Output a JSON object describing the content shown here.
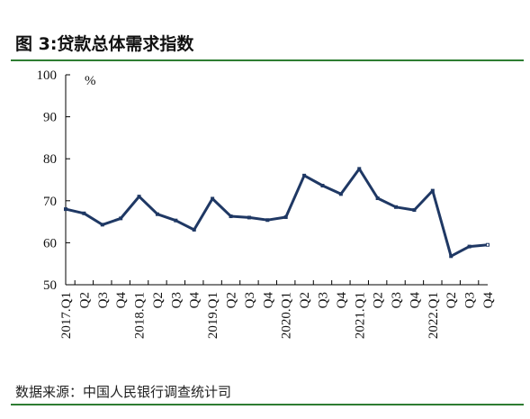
{
  "header": {
    "title": "图 3:贷款总体需求指数"
  },
  "footer": {
    "source": "数据来源：中国人民银行调查统计司"
  },
  "colors": {
    "rule": "#2e7d32",
    "line": "#1f3864",
    "axis": "#000000"
  },
  "chart_data": {
    "type": "line",
    "title": "贷款总体需求指数",
    "ylabel": "%",
    "ylim": [
      50,
      100
    ],
    "yticks": [
      50,
      60,
      70,
      80,
      90,
      100
    ],
    "grid": false,
    "categories": [
      "2017.Q1",
      "Q2",
      "Q3",
      "Q4",
      "2018.Q1",
      "Q2",
      "Q3",
      "Q4",
      "2019.Q1",
      "Q2",
      "Q3",
      "Q4",
      "2020.Q1",
      "Q2",
      "Q3",
      "Q4",
      "2021.Q1",
      "Q2",
      "Q3",
      "Q4",
      "2022.Q1",
      "Q2",
      "Q3",
      "Q4"
    ],
    "series": [
      {
        "values": [
          68.0,
          67.0,
          64.3,
          65.8,
          71.0,
          66.8,
          65.3,
          63.1,
          70.5,
          66.3,
          66.0,
          65.4,
          66.1,
          76.0,
          73.6,
          71.6,
          77.6,
          70.6,
          68.5,
          67.8,
          72.4,
          56.8,
          59.1,
          59.5
        ]
      }
    ]
  }
}
